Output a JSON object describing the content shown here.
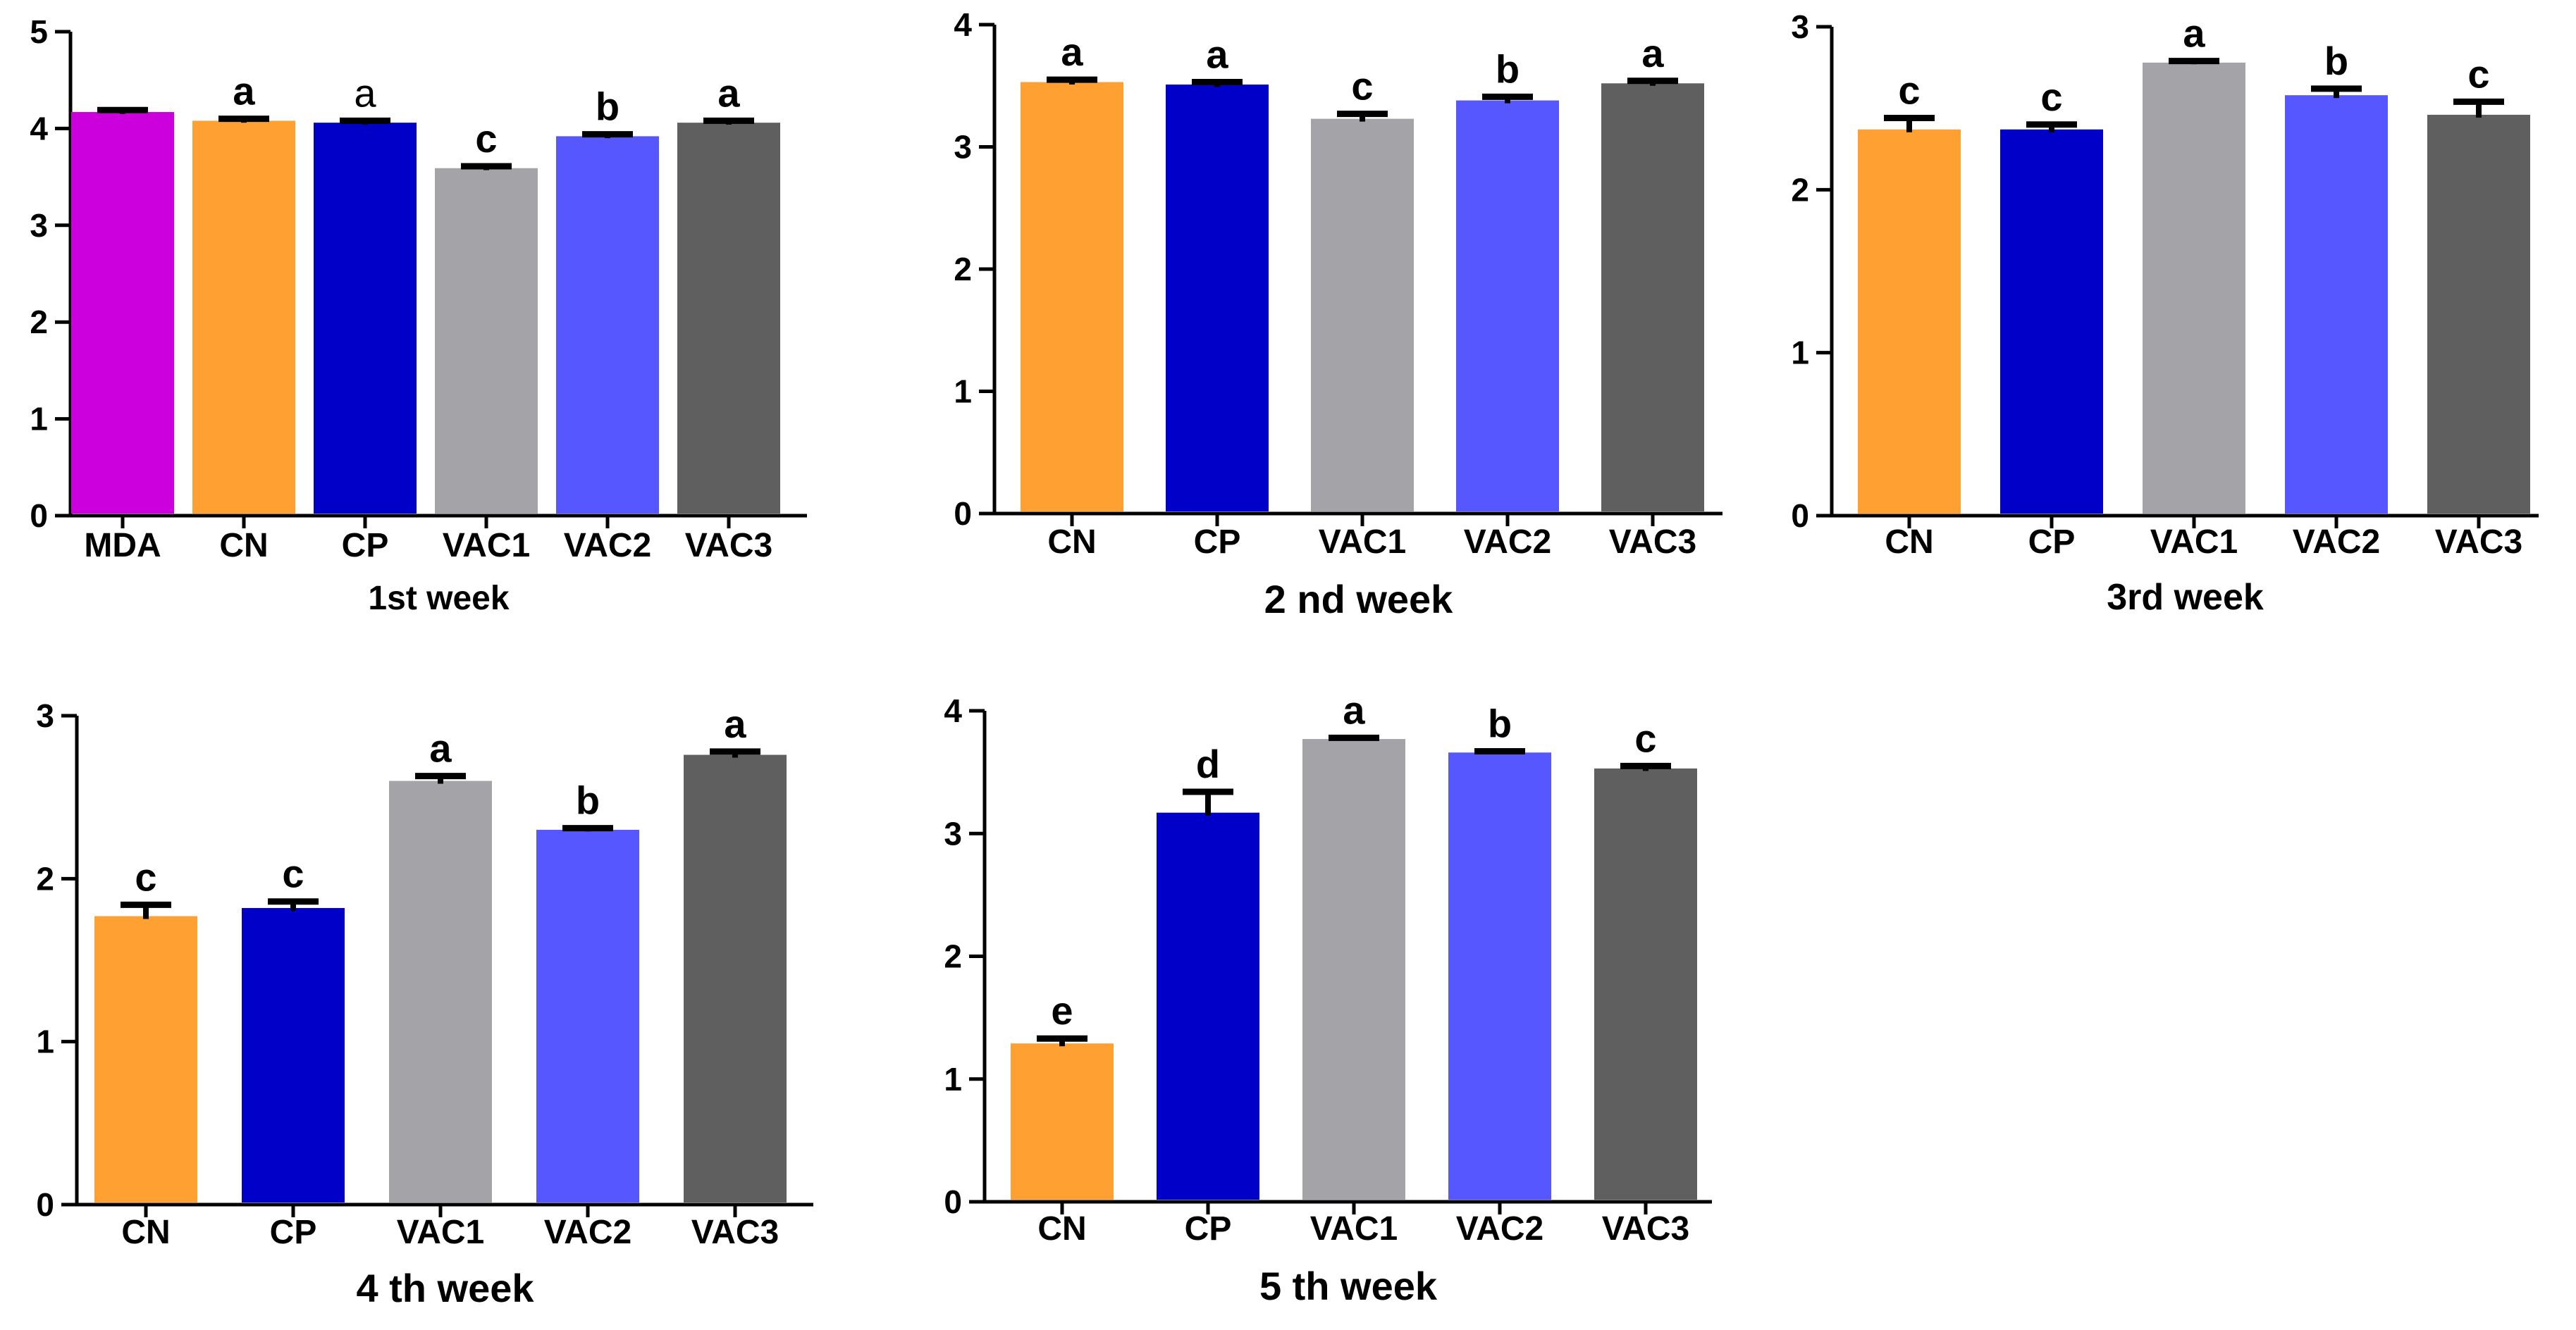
{
  "chart_data": [
    {
      "type": "bar",
      "title": "1st week",
      "categories": [
        "MDA",
        "CN",
        "CP",
        "VAC1",
        "VAC2",
        "VAC3"
      ],
      "values": [
        4.17,
        4.08,
        4.06,
        3.59,
        3.92,
        4.06
      ],
      "errors": [
        0.02,
        0.02,
        0.02,
        0.02,
        0.02,
        0.02
      ],
      "letters": [
        "",
        "a",
        "a",
        "c",
        "b",
        "a"
      ],
      "colors": [
        "#cc00dd",
        "#ffa033",
        "#0000c8",
        "#a3a3a8",
        "#5757ff",
        "#5f5f5f"
      ],
      "ylim": [
        0,
        5
      ],
      "yticks": [
        "0",
        "1",
        "2",
        "3",
        "4",
        "5"
      ],
      "xlabel": "",
      "ylabel": ""
    },
    {
      "type": "bar",
      "title": "2 nd week",
      "categories": [
        "CN",
        "CP",
        "VAC1",
        "VAC2",
        "VAC3"
      ],
      "values": [
        3.53,
        3.51,
        3.23,
        3.38,
        3.52
      ],
      "errors": [
        0.02,
        0.02,
        0.04,
        0.03,
        0.02
      ],
      "letters": [
        "a",
        "a",
        "c",
        "b",
        "a"
      ],
      "colors": [
        "#ffa033",
        "#0000c8",
        "#a3a3a8",
        "#5757ff",
        "#5f5f5f"
      ],
      "ylim": [
        0,
        4
      ],
      "yticks": [
        "0",
        "1",
        "2",
        "3",
        "4"
      ],
      "xlabel": "",
      "ylabel": ""
    },
    {
      "type": "bar",
      "title": "3rd week",
      "categories": [
        "CN",
        "CP",
        "VAC1",
        "VAC2",
        "VAC3"
      ],
      "values": [
        2.37,
        2.37,
        2.78,
        2.58,
        2.46
      ],
      "errors": [
        0.07,
        0.03,
        0.01,
        0.04,
        0.08
      ],
      "letters": [
        "c",
        "c",
        "a",
        "b",
        "c"
      ],
      "colors": [
        "#ffa033",
        "#0000c8",
        "#a3a3a8",
        "#5757ff",
        "#5f5f5f"
      ],
      "ylim": [
        0,
        3
      ],
      "yticks": [
        "0",
        "1",
        "2",
        "3"
      ],
      "xlabel": "",
      "ylabel": ""
    },
    {
      "type": "bar",
      "title": "4 th week",
      "categories": [
        "CN",
        "CP",
        "VAC1",
        "VAC2",
        "VAC3"
      ],
      "values": [
        1.77,
        1.82,
        2.6,
        2.3,
        2.76
      ],
      "errors": [
        0.07,
        0.04,
        0.03,
        0.01,
        0.02
      ],
      "letters": [
        "c",
        "c",
        "a",
        "b",
        "a"
      ],
      "colors": [
        "#ffa033",
        "#0000c8",
        "#a3a3a8",
        "#5757ff",
        "#5f5f5f"
      ],
      "ylim": [
        0,
        3
      ],
      "yticks": [
        "0",
        "1",
        "2",
        "3"
      ],
      "xlabel": "",
      "ylabel": ""
    },
    {
      "type": "bar",
      "title": "5 th week",
      "categories": [
        "CN",
        "CP",
        "VAC1",
        "VAC2",
        "VAC3"
      ],
      "values": [
        1.29,
        3.17,
        3.77,
        3.66,
        3.53
      ],
      "errors": [
        0.04,
        0.17,
        0.01,
        0.01,
        0.02
      ],
      "letters": [
        "e",
        "d",
        "a",
        "b",
        "c"
      ],
      "colors": [
        "#ffa033",
        "#0000c8",
        "#a3a3a8",
        "#5757ff",
        "#5f5f5f"
      ],
      "ylim": [
        0,
        4
      ],
      "yticks": [
        "0",
        "1",
        "2",
        "3",
        "4"
      ],
      "xlabel": "",
      "ylabel": ""
    }
  ]
}
